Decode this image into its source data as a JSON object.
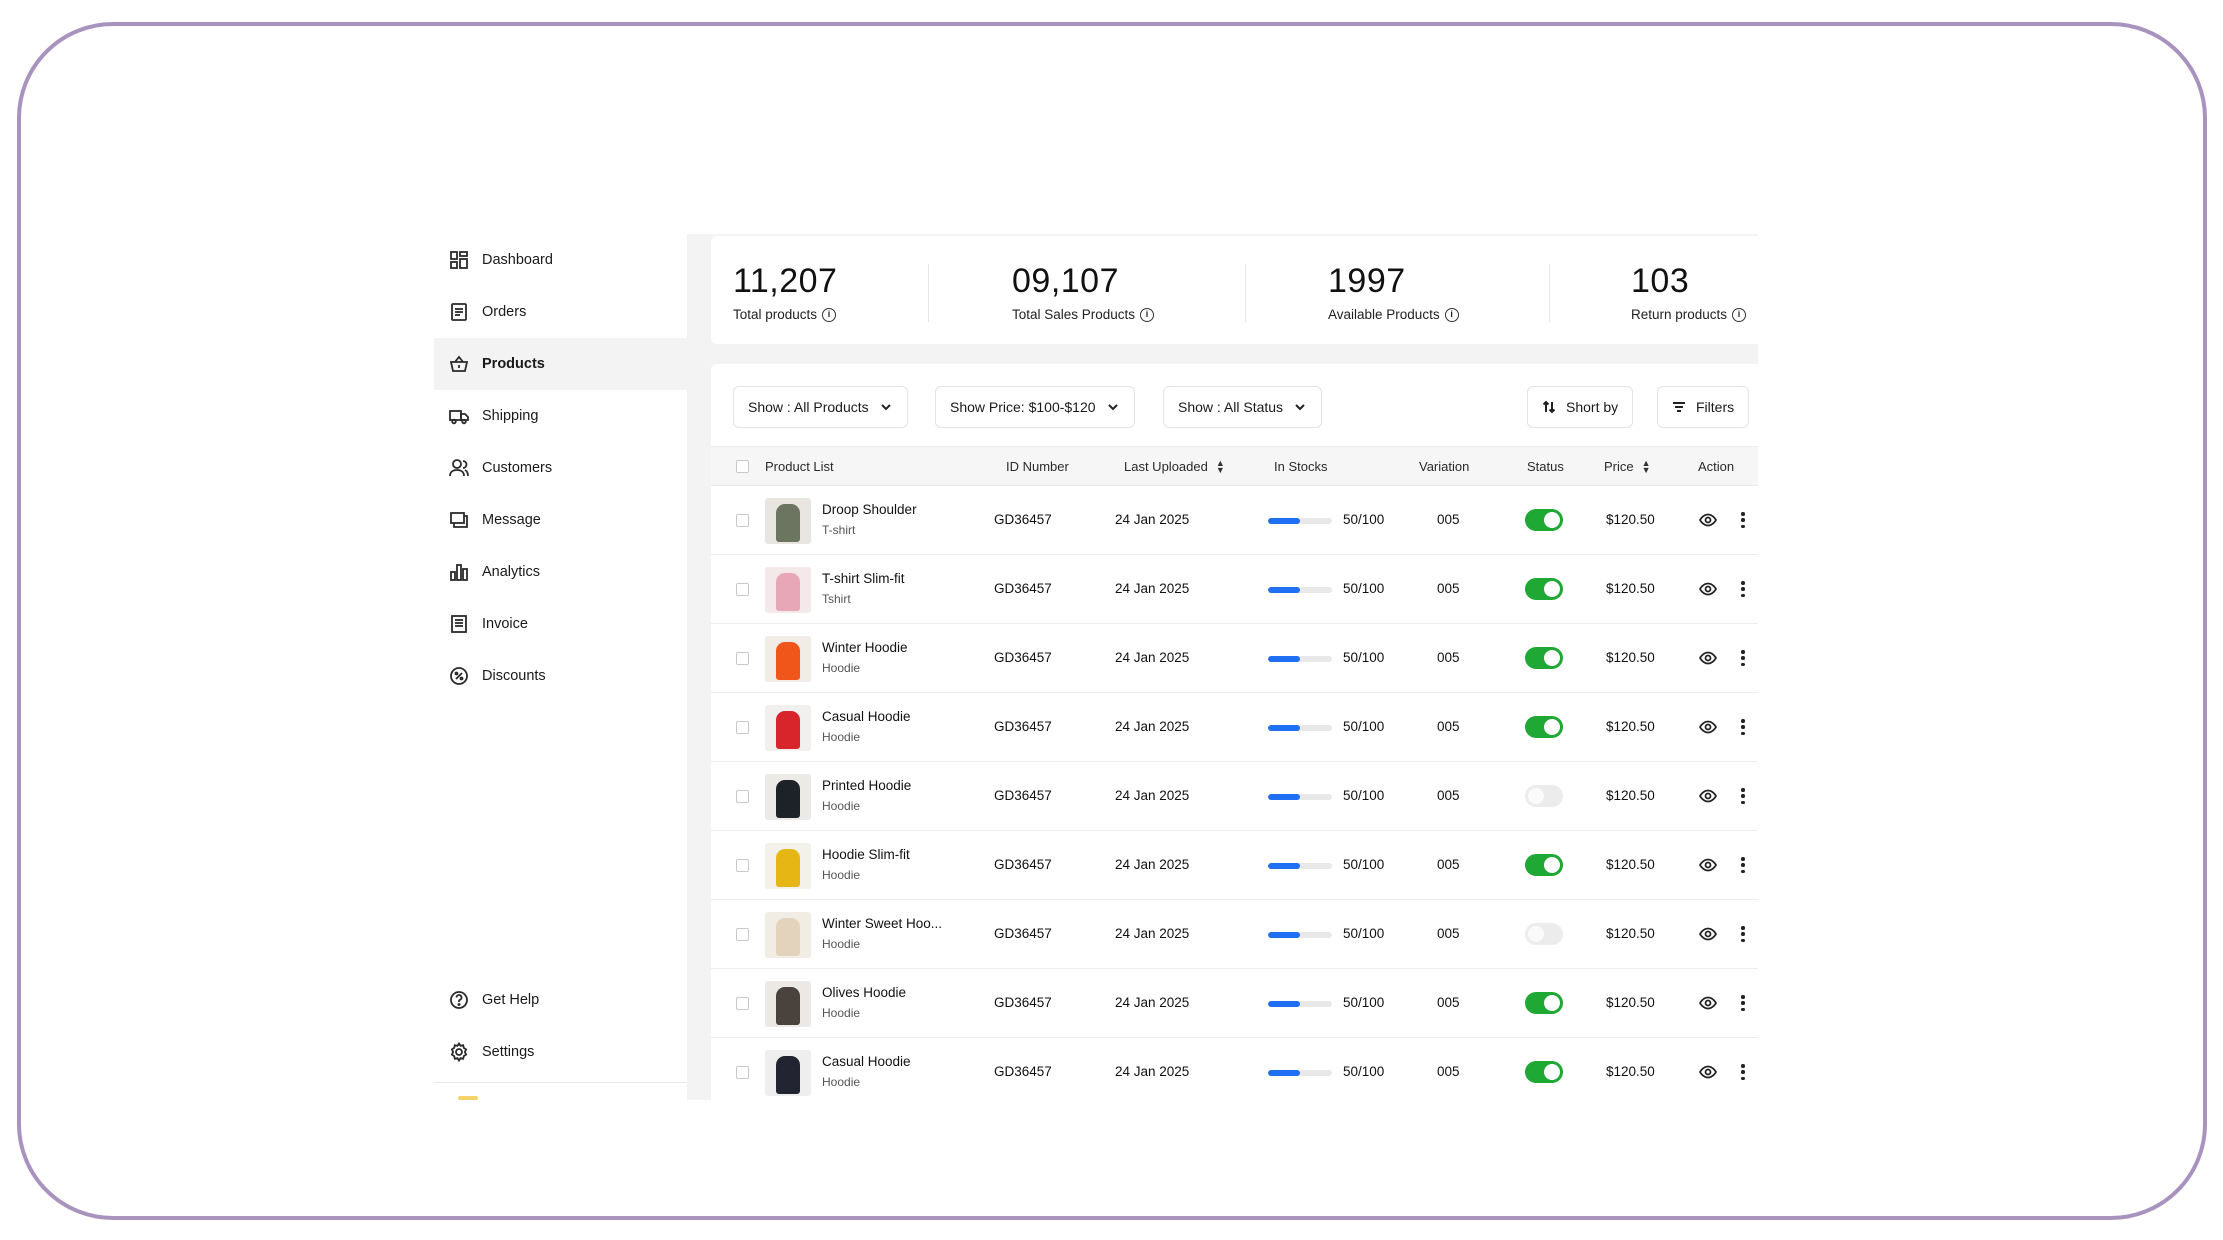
{
  "sidebar": {
    "items": [
      {
        "label": "Dashboard",
        "icon": "dashboard-icon"
      },
      {
        "label": "Orders",
        "icon": "orders-icon"
      },
      {
        "label": "Products",
        "icon": "basket-icon",
        "active": true
      },
      {
        "label": "Shipping",
        "icon": "truck-icon"
      },
      {
        "label": "Customers",
        "icon": "users-icon"
      },
      {
        "label": "Message",
        "icon": "message-icon"
      },
      {
        "label": "Analytics",
        "icon": "bar-chart-icon"
      },
      {
        "label": "Invoice",
        "icon": "invoice-icon"
      },
      {
        "label": "Discounts",
        "icon": "discount-icon"
      }
    ],
    "bottom": [
      {
        "label": "Get Help",
        "icon": "help-icon"
      },
      {
        "label": "Settings",
        "icon": "gear-icon"
      }
    ]
  },
  "stats": [
    {
      "value": "11,207",
      "label": "Total products"
    },
    {
      "value": "09,107",
      "label": "Total Sales Products"
    },
    {
      "value": "1997",
      "label": "Available Products"
    },
    {
      "value": "103",
      "label": "Return products"
    }
  ],
  "filters": {
    "show_products": "Show : All Products",
    "show_price": "Show Price: $100-$120",
    "show_status": "Show : All Status",
    "sort_by": "Short by",
    "filters": "Filters"
  },
  "table": {
    "headers": {
      "product": "Product List",
      "id": "ID Number",
      "uploaded": "Last Uploaded",
      "stocks": "In Stocks",
      "variation": "Variation",
      "status": "Status",
      "price": "Price",
      "action": "Action"
    },
    "rows": [
      {
        "name": "Droop Shoulder",
        "category": "T-shirt",
        "id": "GD36457",
        "uploaded": "24 Jan 2025",
        "stock_text": "50/100",
        "stock_fraction": 0.5,
        "variation": "005",
        "status_on": true,
        "price": "$120.50",
        "thumb_color": "#6b7560",
        "thumb_bg": "#e9e6e1"
      },
      {
        "name": "T-shirt Slim-fit",
        "category": "Tshirt",
        "id": "GD36457",
        "uploaded": "24 Jan 2025",
        "stock_text": "50/100",
        "stock_fraction": 0.5,
        "variation": "005",
        "status_on": true,
        "price": "$120.50",
        "thumb_color": "#e7a7b7",
        "thumb_bg": "#f3e9ea"
      },
      {
        "name": "Winter Hoodie",
        "category": "Hoodie",
        "id": "GD36457",
        "uploaded": "24 Jan 2025",
        "stock_text": "50/100",
        "stock_fraction": 0.5,
        "variation": "005",
        "status_on": true,
        "price": "$120.50",
        "thumb_color": "#f0561a",
        "thumb_bg": "#f1ece6"
      },
      {
        "name": "Casual Hoodie",
        "category": "Hoodie",
        "id": "GD36457",
        "uploaded": "24 Jan 2025",
        "stock_text": "50/100",
        "stock_fraction": 0.5,
        "variation": "005",
        "status_on": true,
        "price": "$120.50",
        "thumb_color": "#d8252c",
        "thumb_bg": "#f2f0ee"
      },
      {
        "name": "Printed Hoodie",
        "category": "Hoodie",
        "id": "GD36457",
        "uploaded": "24 Jan 2025",
        "stock_text": "50/100",
        "stock_fraction": 0.5,
        "variation": "005",
        "status_on": false,
        "price": "$120.50",
        "thumb_color": "#1d2228",
        "thumb_bg": "#eceae6"
      },
      {
        "name": "Hoodie Slim-fit",
        "category": "Hoodie",
        "id": "GD36457",
        "uploaded": "24 Jan 2025",
        "stock_text": "50/100",
        "stock_fraction": 0.5,
        "variation": "005",
        "status_on": true,
        "price": "$120.50",
        "thumb_color": "#e6b714",
        "thumb_bg": "#f3f1ea"
      },
      {
        "name": "Winter Sweet Hoo...",
        "category": "Hoodie",
        "id": "GD36457",
        "uploaded": "24 Jan 2025",
        "stock_text": "50/100",
        "stock_fraction": 0.5,
        "variation": "005",
        "status_on": false,
        "price": "$120.50",
        "thumb_color": "#e3d3bd",
        "thumb_bg": "#f1ece4"
      },
      {
        "name": "Olives Hoodie",
        "category": "Hoodie",
        "id": "GD36457",
        "uploaded": "24 Jan 2025",
        "stock_text": "50/100",
        "stock_fraction": 0.5,
        "variation": "005",
        "status_on": true,
        "price": "$120.50",
        "thumb_color": "#4a423c",
        "thumb_bg": "#ece9e4"
      },
      {
        "name": "Casual Hoodie",
        "category": "Hoodie",
        "id": "GD36457",
        "uploaded": "24 Jan 2025",
        "stock_text": "50/100",
        "stock_fraction": 0.5,
        "variation": "005",
        "status_on": true,
        "price": "$120.50",
        "thumb_color": "#232432",
        "thumb_bg": "#eeeeee"
      }
    ]
  },
  "colors": {
    "toggle_on": "#1fa834",
    "stock_bar": "#1f6ff2",
    "frame_border": "#a893bf"
  }
}
